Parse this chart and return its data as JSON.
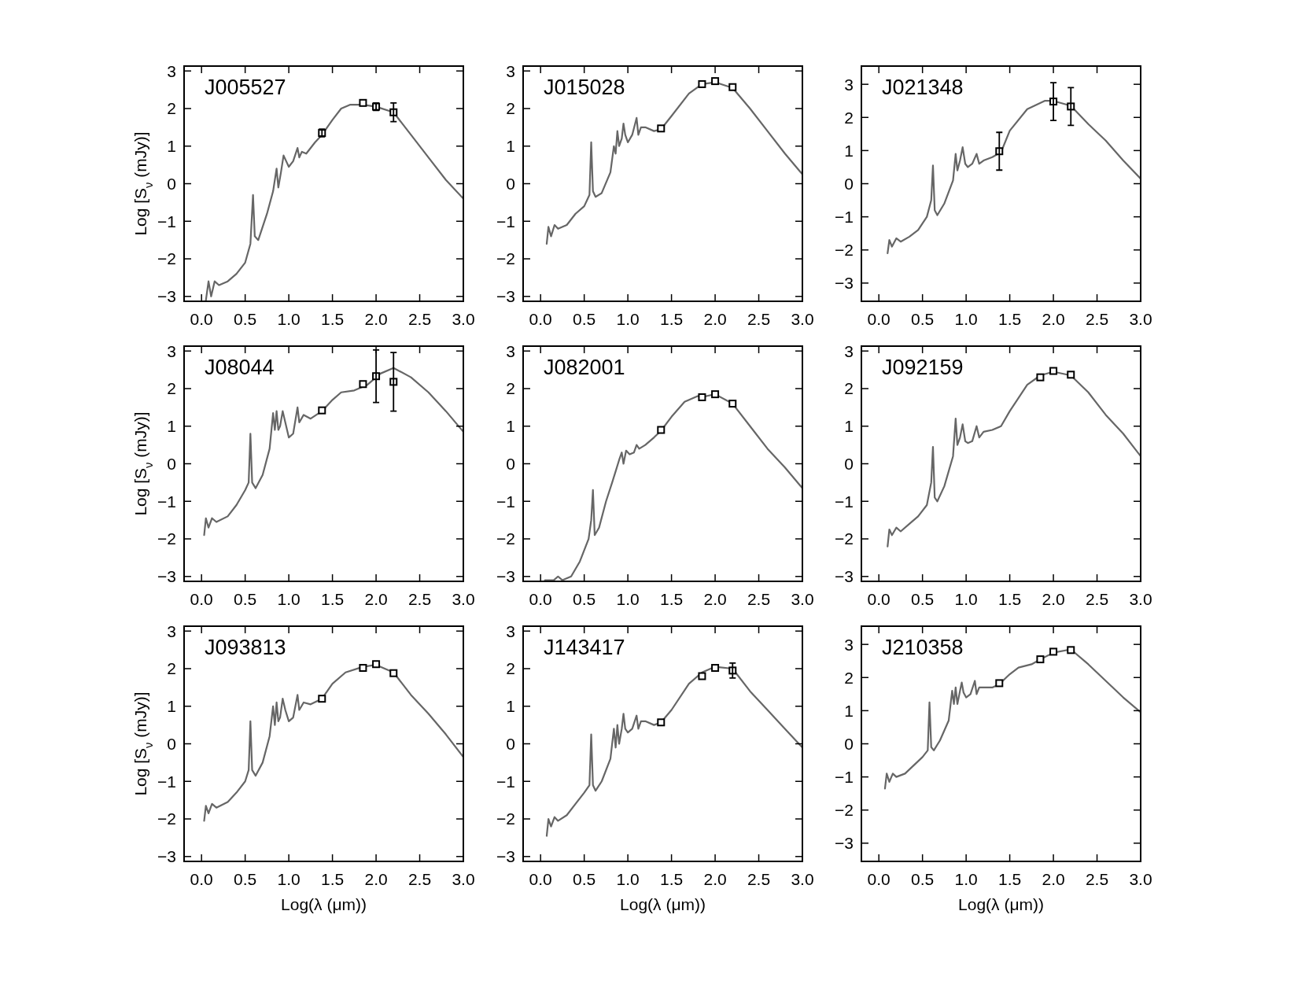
{
  "chart_data": [
    {
      "type": "line",
      "title": "J005527",
      "ylabel": "Log [S$_{ν}$ (mJy)]",
      "xlim": [
        -0.2,
        3.0
      ],
      "ylim": [
        -3.13,
        3.13
      ],
      "xticks": [
        {
          "value": 0,
          "label": "0.0"
        },
        {
          "value": 0.5,
          "label": "0.5"
        },
        {
          "value": 1,
          "label": "1.0"
        },
        {
          "value": 1.5,
          "label": "1.5"
        },
        {
          "value": 2,
          "label": "2.0"
        },
        {
          "value": 2.5,
          "label": "2.5"
        },
        {
          "value": 3,
          "label": "3.0"
        }
      ],
      "yticks": [
        -3,
        -2,
        -1,
        0,
        1,
        2,
        3
      ],
      "series": [
        {
          "type": "line",
          "color": "#666666",
          "x": [
            0.05,
            0.08,
            0.11,
            0.15,
            0.2,
            0.3,
            0.4,
            0.5,
            0.56,
            0.59,
            0.61,
            0.65,
            0.75,
            0.82,
            0.86,
            0.88,
            0.91,
            0.94,
            0.97,
            1.0,
            1.05,
            1.1,
            1.12,
            1.15,
            1.2,
            1.3,
            1.38,
            1.5,
            1.6,
            1.7,
            1.85,
            2.0,
            2.2,
            2.4,
            2.6,
            2.8,
            3.0
          ],
          "values": [
            -3.1,
            -2.6,
            -3.0,
            -2.6,
            -2.7,
            -2.6,
            -2.4,
            -2.1,
            -1.6,
            -0.3,
            -1.4,
            -1.5,
            -0.8,
            -0.2,
            0.4,
            -0.1,
            0.3,
            0.75,
            0.6,
            0.45,
            0.6,
            0.95,
            0.7,
            0.85,
            0.8,
            1.1,
            1.3,
            1.7,
            2.0,
            2.1,
            2.1,
            2.05,
            1.9,
            1.3,
            0.7,
            0.1,
            -0.4
          ]
        },
        {
          "type": "scatter",
          "color": "#000000",
          "marker": "square",
          "x": [
            1.38,
            1.85,
            2.0,
            2.2
          ],
          "values": [
            1.35,
            2.15,
            2.05,
            1.9
          ],
          "errors": [
            0.1,
            null,
            0.1,
            0.25
          ]
        }
      ]
    },
    {
      "type": "line",
      "title": "J015028",
      "xlim": [
        -0.2,
        3.0
      ],
      "ylim": [
        -3.13,
        3.13
      ],
      "xticks": [
        {
          "value": 0,
          "label": "0.0"
        },
        {
          "value": 0.5,
          "label": "0.5"
        },
        {
          "value": 1,
          "label": "1.0"
        },
        {
          "value": 1.5,
          "label": "1.5"
        },
        {
          "value": 2,
          "label": "2.0"
        },
        {
          "value": 2.5,
          "label": "2.5"
        },
        {
          "value": 3,
          "label": "3.0"
        }
      ],
      "yticks": [
        -3,
        -2,
        -1,
        0,
        1,
        2,
        3
      ],
      "series": [
        {
          "type": "line",
          "color": "#666666",
          "x": [
            0.07,
            0.09,
            0.12,
            0.16,
            0.2,
            0.3,
            0.4,
            0.5,
            0.56,
            0.58,
            0.6,
            0.63,
            0.7,
            0.8,
            0.84,
            0.86,
            0.88,
            0.9,
            0.93,
            0.95,
            0.97,
            1.0,
            1.05,
            1.1,
            1.12,
            1.15,
            1.2,
            1.3,
            1.38,
            1.5,
            1.7,
            1.85,
            2.0,
            2.2,
            2.4,
            2.6,
            2.8,
            3.0
          ],
          "values": [
            -1.6,
            -1.15,
            -1.4,
            -1.1,
            -1.2,
            -1.1,
            -0.8,
            -0.6,
            -0.3,
            1.1,
            -0.2,
            -0.35,
            -0.25,
            0.3,
            1.0,
            0.8,
            1.4,
            1.0,
            1.2,
            1.6,
            1.3,
            1.1,
            1.3,
            1.75,
            1.3,
            1.5,
            1.5,
            1.4,
            1.45,
            1.8,
            2.4,
            2.65,
            2.7,
            2.55,
            2.0,
            1.4,
            0.8,
            0.25
          ]
        },
        {
          "type": "scatter",
          "color": "#000000",
          "marker": "square",
          "x": [
            1.38,
            1.85,
            2.0,
            2.2
          ],
          "values": [
            1.47,
            2.65,
            2.73,
            2.57
          ]
        }
      ]
    },
    {
      "type": "line",
      "title": "J021348",
      "xlim": [
        -0.2,
        3.0
      ],
      "ylim": [
        -3.55,
        3.55
      ],
      "xticks": [
        {
          "value": 0,
          "label": "0.0"
        },
        {
          "value": 0.5,
          "label": "0.5"
        },
        {
          "value": 1,
          "label": "1.0"
        },
        {
          "value": 1.5,
          "label": "1.5"
        },
        {
          "value": 2,
          "label": "2.0"
        },
        {
          "value": 2.5,
          "label": "2.5"
        },
        {
          "value": 3,
          "label": "3.0"
        }
      ],
      "yticks": [
        -3,
        -2,
        -1,
        0,
        1,
        2,
        3
      ],
      "series": [
        {
          "type": "line",
          "color": "#666666",
          "x": [
            0.1,
            0.12,
            0.15,
            0.2,
            0.25,
            0.35,
            0.45,
            0.55,
            0.6,
            0.62,
            0.64,
            0.67,
            0.75,
            0.85,
            0.88,
            0.9,
            0.93,
            0.96,
            0.99,
            1.02,
            1.07,
            1.12,
            1.15,
            1.2,
            1.3,
            1.4,
            1.5,
            1.7,
            1.9,
            2.0,
            2.2,
            2.4,
            2.6,
            2.8,
            3.0
          ],
          "values": [
            -2.1,
            -1.7,
            -1.9,
            -1.65,
            -1.75,
            -1.6,
            -1.4,
            -1.0,
            -0.5,
            0.55,
            -0.8,
            -0.95,
            -0.6,
            0.1,
            0.9,
            0.4,
            0.7,
            1.1,
            0.6,
            0.5,
            0.6,
            0.9,
            0.6,
            0.7,
            0.8,
            0.95,
            1.6,
            2.25,
            2.5,
            2.5,
            2.35,
            1.8,
            1.3,
            0.7,
            0.15
          ]
        },
        {
          "type": "scatter",
          "color": "#000000",
          "marker": "square",
          "x": [
            1.38,
            2.0,
            2.2
          ],
          "values": [
            0.98,
            2.48,
            2.33
          ],
          "errors": [
            0.57,
            0.57,
            0.57
          ]
        }
      ]
    },
    {
      "type": "line",
      "title": "J08044",
      "ylabel": "Log [S$_{ν}$ (mJy)]",
      "xlim": [
        -0.2,
        3.0
      ],
      "ylim": [
        -3.13,
        3.13
      ],
      "xticks": [
        {
          "value": 0,
          "label": "0.0"
        },
        {
          "value": 0.5,
          "label": "0.5"
        },
        {
          "value": 1,
          "label": "1.0"
        },
        {
          "value": 1.5,
          "label": "1.5"
        },
        {
          "value": 2,
          "label": "2.0"
        },
        {
          "value": 2.5,
          "label": "2.5"
        },
        {
          "value": 3,
          "label": "3.0"
        }
      ],
      "yticks": [
        -3,
        -2,
        -1,
        0,
        1,
        2,
        3
      ],
      "series": [
        {
          "type": "line",
          "color": "#666666",
          "x": [
            0.03,
            0.05,
            0.08,
            0.12,
            0.17,
            0.3,
            0.4,
            0.5,
            0.54,
            0.56,
            0.58,
            0.62,
            0.7,
            0.78,
            0.82,
            0.84,
            0.86,
            0.88,
            0.9,
            0.93,
            0.96,
            1.0,
            1.05,
            1.1,
            1.12,
            1.17,
            1.25,
            1.38,
            1.5,
            1.6,
            1.75,
            1.9,
            2.05,
            2.2,
            2.4,
            2.6,
            2.8,
            3.0
          ],
          "values": [
            -1.9,
            -1.45,
            -1.7,
            -1.45,
            -1.55,
            -1.4,
            -1.1,
            -0.7,
            -0.5,
            0.8,
            -0.5,
            -0.65,
            -0.3,
            0.4,
            1.35,
            0.9,
            1.4,
            0.9,
            1.0,
            1.4,
            1.1,
            0.7,
            0.8,
            1.5,
            1.1,
            1.3,
            1.2,
            1.4,
            1.7,
            1.9,
            1.95,
            2.1,
            2.4,
            2.55,
            2.3,
            1.9,
            1.4,
            0.85
          ]
        },
        {
          "type": "scatter",
          "color": "#000000",
          "marker": "square",
          "x": [
            1.38,
            1.85,
            2.0,
            2.2
          ],
          "values": [
            1.42,
            2.12,
            2.33,
            2.18
          ],
          "errors": [
            null,
            null,
            0.7,
            0.78
          ]
        }
      ]
    },
    {
      "type": "line",
      "title": "J082001",
      "xlim": [
        -0.2,
        3.0
      ],
      "ylim": [
        -3.13,
        3.13
      ],
      "xticks": [
        {
          "value": 0,
          "label": "0.0"
        },
        {
          "value": 0.5,
          "label": "0.5"
        },
        {
          "value": 1,
          "label": "1.0"
        },
        {
          "value": 1.5,
          "label": "1.5"
        },
        {
          "value": 2,
          "label": "2.0"
        },
        {
          "value": 2.5,
          "label": "2.5"
        },
        {
          "value": 3,
          "label": "3.0"
        }
      ],
      "yticks": [
        -3,
        -2,
        -1,
        0,
        1,
        2,
        3
      ],
      "series": [
        {
          "type": "line",
          "color": "#666666",
          "x": [
            0.05,
            0.15,
            0.2,
            0.25,
            0.35,
            0.45,
            0.55,
            0.58,
            0.6,
            0.62,
            0.67,
            0.75,
            0.82,
            0.86,
            0.9,
            0.93,
            0.95,
            0.98,
            1.02,
            1.07,
            1.1,
            1.13,
            1.2,
            1.3,
            1.38,
            1.5,
            1.65,
            1.8,
            1.9,
            2.0,
            2.2,
            2.4,
            2.6,
            2.8,
            3.0
          ],
          "values": [
            -3.1,
            -3.1,
            -3.0,
            -3.1,
            -3.0,
            -2.6,
            -2.0,
            -1.5,
            -0.7,
            -1.9,
            -1.7,
            -1.0,
            -0.5,
            -0.2,
            0.1,
            0.3,
            0.0,
            0.35,
            0.25,
            0.3,
            0.5,
            0.4,
            0.5,
            0.7,
            0.88,
            1.25,
            1.65,
            1.8,
            1.8,
            1.85,
            1.6,
            1.0,
            0.4,
            -0.1,
            -0.65
          ]
        },
        {
          "type": "scatter",
          "color": "#000000",
          "marker": "square",
          "x": [
            1.38,
            1.85,
            2.0,
            2.2
          ],
          "values": [
            0.9,
            1.77,
            1.85,
            1.6
          ]
        }
      ]
    },
    {
      "type": "line",
      "title": "J092159",
      "xlim": [
        -0.2,
        3.0
      ],
      "ylim": [
        -3.13,
        3.13
      ],
      "xticks": [
        {
          "value": 0,
          "label": "0.0"
        },
        {
          "value": 0.5,
          "label": "0.5"
        },
        {
          "value": 1,
          "label": "1.0"
        },
        {
          "value": 1.5,
          "label": "1.5"
        },
        {
          "value": 2,
          "label": "2.0"
        },
        {
          "value": 2.5,
          "label": "2.5"
        },
        {
          "value": 3,
          "label": "3.0"
        }
      ],
      "yticks": [
        -3,
        -2,
        -1,
        0,
        1,
        2,
        3
      ],
      "series": [
        {
          "type": "line",
          "color": "#666666",
          "x": [
            0.1,
            0.12,
            0.15,
            0.2,
            0.25,
            0.35,
            0.45,
            0.55,
            0.6,
            0.62,
            0.64,
            0.67,
            0.75,
            0.85,
            0.88,
            0.9,
            0.93,
            0.96,
            0.99,
            1.02,
            1.07,
            1.12,
            1.15,
            1.2,
            1.3,
            1.4,
            1.5,
            1.7,
            1.85,
            2.0,
            2.2,
            2.4,
            2.6,
            2.8,
            3.0
          ],
          "values": [
            -2.2,
            -1.75,
            -1.9,
            -1.7,
            -1.8,
            -1.6,
            -1.4,
            -1.1,
            -0.5,
            0.45,
            -0.9,
            -1.0,
            -0.6,
            0.2,
            1.2,
            0.5,
            0.7,
            1.05,
            0.6,
            0.55,
            0.6,
            1.0,
            0.7,
            0.85,
            0.9,
            1.0,
            1.4,
            2.1,
            2.35,
            2.45,
            2.35,
            1.9,
            1.3,
            0.8,
            0.2
          ]
        },
        {
          "type": "scatter",
          "color": "#000000",
          "marker": "square",
          "x": [
            1.85,
            2.0,
            2.2
          ],
          "values": [
            2.3,
            2.47,
            2.37
          ]
        }
      ]
    },
    {
      "type": "line",
      "title": "J093813",
      "xlabel": "Log(λ (μm))",
      "ylabel": "Log [S$_{ν}$ (mJy)]",
      "xlim": [
        -0.2,
        3.0
      ],
      "ylim": [
        -3.13,
        3.13
      ],
      "xticks": [
        {
          "value": 0,
          "label": "0.0"
        },
        {
          "value": 0.5,
          "label": "0.5"
        },
        {
          "value": 1,
          "label": "1.0"
        },
        {
          "value": 1.5,
          "label": "1.5"
        },
        {
          "value": 2,
          "label": "2.0"
        },
        {
          "value": 2.5,
          "label": "2.5"
        },
        {
          "value": 3,
          "label": "3.0"
        }
      ],
      "yticks": [
        -3,
        -2,
        -1,
        0,
        1,
        2,
        3
      ],
      "series": [
        {
          "type": "line",
          "color": "#666666",
          "x": [
            0.03,
            0.05,
            0.08,
            0.12,
            0.17,
            0.3,
            0.4,
            0.5,
            0.54,
            0.56,
            0.58,
            0.62,
            0.7,
            0.78,
            0.82,
            0.84,
            0.86,
            0.88,
            0.9,
            0.93,
            0.96,
            1.0,
            1.05,
            1.1,
            1.12,
            1.17,
            1.25,
            1.38,
            1.5,
            1.65,
            1.85,
            2.0,
            2.2,
            2.4,
            2.6,
            2.8,
            3.0
          ],
          "values": [
            -2.05,
            -1.65,
            -1.85,
            -1.6,
            -1.7,
            -1.55,
            -1.3,
            -1.0,
            -0.7,
            0.6,
            -0.7,
            -0.85,
            -0.5,
            0.2,
            1.0,
            0.5,
            1.1,
            0.6,
            0.7,
            1.2,
            0.9,
            0.6,
            0.7,
            1.3,
            0.9,
            1.1,
            1.05,
            1.2,
            1.6,
            1.9,
            2.05,
            2.1,
            1.9,
            1.3,
            0.8,
            0.25,
            -0.35
          ]
        },
        {
          "type": "scatter",
          "color": "#000000",
          "marker": "square",
          "x": [
            1.38,
            1.85,
            2.0,
            2.2
          ],
          "values": [
            1.2,
            2.02,
            2.12,
            1.88
          ]
        }
      ]
    },
    {
      "type": "line",
      "title": "J143417",
      "xlabel": "Log(λ (μm))",
      "xlim": [
        -0.2,
        3.0
      ],
      "ylim": [
        -3.13,
        3.13
      ],
      "xticks": [
        {
          "value": 0,
          "label": "0.0"
        },
        {
          "value": 0.5,
          "label": "0.5"
        },
        {
          "value": 1,
          "label": "1.0"
        },
        {
          "value": 1.5,
          "label": "1.5"
        },
        {
          "value": 2,
          "label": "2.0"
        },
        {
          "value": 2.5,
          "label": "2.5"
        },
        {
          "value": 3,
          "label": "3.0"
        }
      ],
      "yticks": [
        -3,
        -2,
        -1,
        0,
        1,
        2,
        3
      ],
      "series": [
        {
          "type": "line",
          "color": "#666666",
          "x": [
            0.07,
            0.09,
            0.12,
            0.16,
            0.2,
            0.3,
            0.4,
            0.5,
            0.56,
            0.58,
            0.6,
            0.63,
            0.7,
            0.8,
            0.84,
            0.86,
            0.88,
            0.9,
            0.93,
            0.95,
            0.97,
            1.0,
            1.05,
            1.1,
            1.12,
            1.15,
            1.2,
            1.3,
            1.38,
            1.5,
            1.7,
            1.85,
            2.0,
            2.2,
            2.4,
            2.6,
            2.8,
            3.0
          ],
          "values": [
            -2.45,
            -2.0,
            -2.2,
            -1.95,
            -2.05,
            -1.9,
            -1.6,
            -1.3,
            -1.1,
            0.25,
            -1.1,
            -1.25,
            -1.0,
            -0.4,
            0.4,
            -0.1,
            0.5,
            0.0,
            0.4,
            0.8,
            0.4,
            0.3,
            0.4,
            0.75,
            0.4,
            0.6,
            0.6,
            0.5,
            0.57,
            0.9,
            1.6,
            1.9,
            2.05,
            2.0,
            1.4,
            0.9,
            0.4,
            -0.1
          ]
        },
        {
          "type": "scatter",
          "color": "#000000",
          "marker": "square",
          "x": [
            1.38,
            1.85,
            2.0,
            2.2
          ],
          "values": [
            0.57,
            1.8,
            2.02,
            1.95
          ],
          "errors": [
            null,
            null,
            null,
            0.2
          ]
        }
      ]
    },
    {
      "type": "line",
      "title": "J210358",
      "xlabel": "Log(λ (μm))",
      "xlim": [
        -0.2,
        3.0
      ],
      "ylim": [
        -3.55,
        3.55
      ],
      "xticks": [
        {
          "value": 0,
          "label": "0.0"
        },
        {
          "value": 0.5,
          "label": "0.5"
        },
        {
          "value": 1,
          "label": "1.0"
        },
        {
          "value": 1.5,
          "label": "1.5"
        },
        {
          "value": 2,
          "label": "2.0"
        },
        {
          "value": 2.5,
          "label": "2.5"
        },
        {
          "value": 3,
          "label": "3.0"
        }
      ],
      "yticks": [
        -3,
        -2,
        -1,
        0,
        1,
        2,
        3
      ],
      "series": [
        {
          "type": "line",
          "color": "#666666",
          "x": [
            0.07,
            0.09,
            0.12,
            0.16,
            0.2,
            0.3,
            0.4,
            0.5,
            0.56,
            0.58,
            0.6,
            0.63,
            0.7,
            0.8,
            0.84,
            0.86,
            0.88,
            0.9,
            0.93,
            0.95,
            0.97,
            1.0,
            1.05,
            1.1,
            1.12,
            1.15,
            1.2,
            1.3,
            1.38,
            1.5,
            1.6,
            1.75,
            1.85,
            2.0,
            2.2,
            2.4,
            2.6,
            2.8,
            3.0
          ],
          "values": [
            -1.35,
            -0.9,
            -1.15,
            -0.9,
            -1.0,
            -0.9,
            -0.65,
            -0.4,
            -0.2,
            1.25,
            -0.1,
            -0.2,
            0.1,
            0.7,
            1.6,
            1.2,
            1.7,
            1.2,
            1.6,
            1.85,
            1.55,
            1.4,
            1.5,
            1.9,
            1.5,
            1.7,
            1.7,
            1.7,
            1.8,
            2.1,
            2.3,
            2.4,
            2.55,
            2.75,
            2.85,
            2.4,
            1.9,
            1.4,
            0.95
          ]
        },
        {
          "type": "scatter",
          "color": "#000000",
          "marker": "square",
          "x": [
            1.38,
            1.85,
            2.0,
            2.2
          ],
          "values": [
            1.83,
            2.55,
            2.78,
            2.83
          ]
        }
      ]
    }
  ]
}
